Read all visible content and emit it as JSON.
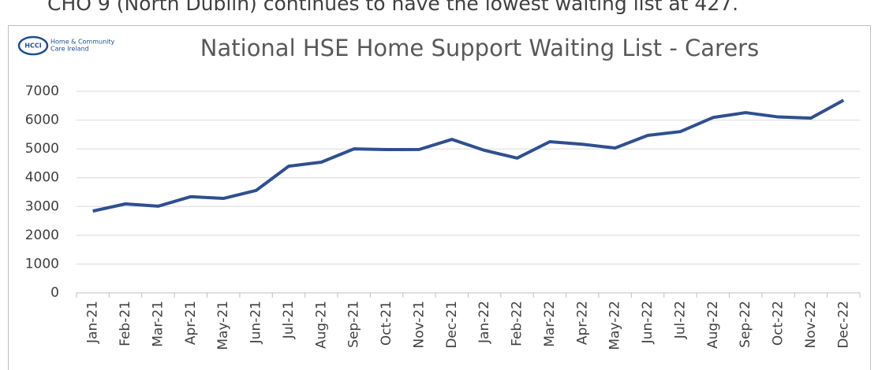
{
  "header_text": "CHO 9 (North Dublin) continues to have the lowest waiting list at 427.",
  "logo": {
    "badge": "HCCI",
    "line1": "Home & Community",
    "line2": "Care Ireland"
  },
  "chart_data": {
    "type": "line",
    "title": "National HSE Home Support Waiting List - Carers",
    "categories": [
      "Jan-21",
      "Feb-21",
      "Mar-21",
      "Apr-21",
      "May-21",
      "Jun-21",
      "Jul-21",
      "Aug-21",
      "Sep-21",
      "Oct-21",
      "Nov-21",
      "Dec-21",
      "Jan-22",
      "Feb-22",
      "Mar-22",
      "Apr-22",
      "May-22",
      "Jun-22",
      "Jul-22",
      "Aug-22",
      "Sep-22",
      "Oct-22",
      "Nov-22",
      "Dec-22"
    ],
    "values": [
      2840,
      3090,
      3010,
      3340,
      3280,
      3555,
      4400,
      4540,
      5000,
      4975,
      4980,
      5330,
      4950,
      4680,
      5250,
      5160,
      5030,
      5470,
      5600,
      6090,
      6260,
      6110,
      6070,
      6690
    ],
    "color": "#2f4f8f",
    "ylim": [
      0,
      7000
    ],
    "yticks": [
      0,
      1000,
      2000,
      3000,
      4000,
      5000,
      6000,
      7000
    ],
    "grid": true
  }
}
